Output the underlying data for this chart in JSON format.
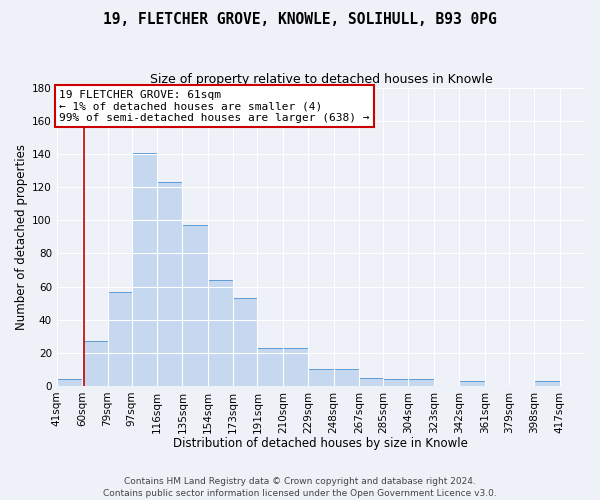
{
  "title": "19, FLETCHER GROVE, KNOWLE, SOLIHULL, B93 0PG",
  "subtitle": "Size of property relative to detached houses in Knowle",
  "xlabel": "Distribution of detached houses by size in Knowle",
  "ylabel": "Number of detached properties",
  "bar_left_edges": [
    41,
    60,
    79,
    97,
    116,
    135,
    154,
    173,
    191,
    210,
    229,
    248,
    267,
    285,
    304,
    323,
    342,
    361,
    379,
    398
  ],
  "bar_widths": [
    19,
    19,
    18,
    19,
    19,
    19,
    19,
    18,
    19,
    19,
    19,
    19,
    18,
    19,
    19,
    19,
    19,
    18,
    19,
    19
  ],
  "bar_heights": [
    4,
    27,
    57,
    141,
    123,
    97,
    64,
    53,
    23,
    23,
    10,
    10,
    5,
    4,
    4,
    0,
    3,
    0,
    0,
    3
  ],
  "tick_labels": [
    "41sqm",
    "60sqm",
    "79sqm",
    "97sqm",
    "116sqm",
    "135sqm",
    "154sqm",
    "173sqm",
    "191sqm",
    "210sqm",
    "229sqm",
    "248sqm",
    "267sqm",
    "285sqm",
    "304sqm",
    "323sqm",
    "342sqm",
    "361sqm",
    "379sqm",
    "398sqm",
    "417sqm"
  ],
  "tick_positions": [
    41,
    60,
    79,
    97,
    116,
    135,
    154,
    173,
    191,
    210,
    229,
    248,
    267,
    285,
    304,
    323,
    342,
    361,
    379,
    398,
    417
  ],
  "bar_color": "#c5d8f0",
  "bar_edge_color": "#5b9bd5",
  "red_line_x": 61,
  "xlim": [
    41,
    436
  ],
  "ylim": [
    0,
    180
  ],
  "yticks": [
    0,
    20,
    40,
    60,
    80,
    100,
    120,
    140,
    160,
    180
  ],
  "annotation_title": "19 FLETCHER GROVE: 61sqm",
  "annotation_line1": "← 1% of detached houses are smaller (4)",
  "annotation_line2": "99% of semi-detached houses are larger (638) →",
  "annotation_box_facecolor": "#ffffff",
  "annotation_box_edgecolor": "#cc0000",
  "footer1": "Contains HM Land Registry data © Crown copyright and database right 2024.",
  "footer2": "Contains public sector information licensed under the Open Government Licence v3.0.",
  "background_color": "#eef2f8",
  "grid_color": "#ffffff",
  "title_fontsize": 10.5,
  "subtitle_fontsize": 9,
  "axis_label_fontsize": 8.5,
  "tick_fontsize": 7.5,
  "annotation_fontsize": 8,
  "footer_fontsize": 6.5
}
